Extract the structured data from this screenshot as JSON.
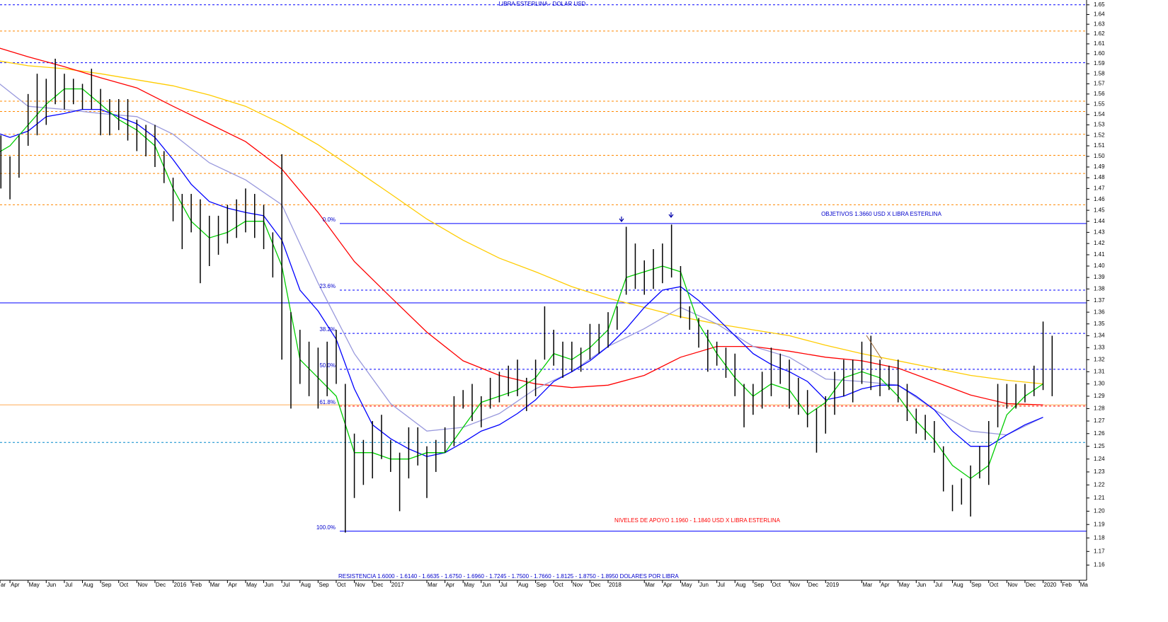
{
  "chart_data": {
    "type": "ohlc",
    "title": "LIBRA ESTERLINA - DOLAR USD",
    "annotations": [
      "OBJETIVOS 1.3660 USD X LIBRA ESTERLINA",
      "NIVELES DE APOYO 1.1960 - 1.1840 USD X LIBRA ESTERLINA",
      "RESISTENCIA 1.6000 - 1.6140 - 1.6635 - 1.6750 - 1.6960 - 1.7245 - 1.7500 - 1.7660 - 1.8125 - 1.8750 - 1.8950 DOLARES POR LIBRA"
    ],
    "color": "#000000",
    "log_y": true,
    "xlim": [
      0.45,
      60.4
    ],
    "ylim": [
      1.149,
      1.655
    ],
    "xticks": [
      {
        "value": 0.45,
        "label": "ar"
      },
      {
        "value": 1,
        "label": "Apr"
      },
      {
        "value": 2,
        "label": "May"
      },
      {
        "value": 3,
        "label": "Jun"
      },
      {
        "value": 4,
        "label": "Jul"
      },
      {
        "value": 5,
        "label": "Aug"
      },
      {
        "value": 6,
        "label": "Sep"
      },
      {
        "value": 7,
        "label": "Oct"
      },
      {
        "value": 8,
        "label": "Nov"
      },
      {
        "value": 9,
        "label": "Dec"
      },
      {
        "value": 10,
        "label": "2016"
      },
      {
        "value": 11,
        "label": "Feb"
      },
      {
        "value": 12,
        "label": "Mar"
      },
      {
        "value": 13,
        "label": "Apr"
      },
      {
        "value": 14,
        "label": "May"
      },
      {
        "value": 15,
        "label": "Jun"
      },
      {
        "value": 16,
        "label": "Jul"
      },
      {
        "value": 17,
        "label": "Aug"
      },
      {
        "value": 18,
        "label": "Sep"
      },
      {
        "value": 19,
        "label": "Oct"
      },
      {
        "value": 20,
        "label": "Nov"
      },
      {
        "value": 21,
        "label": "Dec"
      },
      {
        "value": 22,
        "label": "2017"
      },
      {
        "value": 24,
        "label": "Mar"
      },
      {
        "value": 25,
        "label": "Apr"
      },
      {
        "value": 26,
        "label": "May"
      },
      {
        "value": 27,
        "label": "Jun"
      },
      {
        "value": 28,
        "label": "Jul"
      },
      {
        "value": 29,
        "label": "Aug"
      },
      {
        "value": 30,
        "label": "Sep"
      },
      {
        "value": 31,
        "label": "Oct"
      },
      {
        "value": 32,
        "label": "Nov"
      },
      {
        "value": 33,
        "label": "Dec"
      },
      {
        "value": 34,
        "label": "2018"
      },
      {
        "value": 36,
        "label": "Mar"
      },
      {
        "value": 37,
        "label": "Apr"
      },
      {
        "value": 38,
        "label": "May"
      },
      {
        "value": 39,
        "label": "Jun"
      },
      {
        "value": 40,
        "label": "Jul"
      },
      {
        "value": 41,
        "label": "Aug"
      },
      {
        "value": 42,
        "label": "Sep"
      },
      {
        "value": 43,
        "label": "Oct"
      },
      {
        "value": 44,
        "label": "Nov"
      },
      {
        "value": 45,
        "label": "Dec"
      },
      {
        "value": 46,
        "label": "2019"
      },
      {
        "value": 48,
        "label": "Mar"
      },
      {
        "value": 49,
        "label": "Apr"
      },
      {
        "value": 50,
        "label": "May"
      },
      {
        "value": 51,
        "label": "Jun"
      },
      {
        "value": 52,
        "label": "Jul"
      },
      {
        "value": 53,
        "label": "Aug"
      },
      {
        "value": 54,
        "label": "Sep"
      },
      {
        "value": 55,
        "label": "Oct"
      },
      {
        "value": 56,
        "label": "Nov"
      },
      {
        "value": 57,
        "label": "Dec"
      },
      {
        "value": 58,
        "label": "2020"
      },
      {
        "value": 59,
        "label": "Feb"
      },
      {
        "value": 60,
        "label": "Ma"
      }
    ],
    "yticks": [
      1.16,
      1.17,
      1.18,
      1.19,
      {
        "value": 1.2,
        "label": "1.20"
      },
      1.21,
      1.22,
      1.23,
      1.24,
      1.25,
      1.26,
      1.27,
      1.28,
      1.29,
      {
        "value": 1.3,
        "label": "1.30"
      },
      1.31,
      1.32,
      1.33,
      1.34,
      1.35,
      1.36,
      1.37,
      1.38,
      1.39,
      {
        "value": 1.4,
        "label": "1.40"
      },
      1.41,
      1.42,
      1.43,
      1.44,
      1.45,
      1.46,
      1.47,
      1.48,
      1.49,
      {
        "value": 1.5,
        "label": "1.50"
      },
      1.51,
      1.52,
      1.53,
      1.54,
      1.55,
      1.56,
      1.57,
      1.58,
      1.59,
      {
        "value": 1.6,
        "label": "1.60"
      },
      1.61,
      1.62,
      1.63,
      1.64,
      1.65
    ],
    "x": [
      0.5,
      1,
      1.5,
      2,
      2.5,
      3,
      3.5,
      4,
      4.5,
      5,
      5.5,
      6,
      6.5,
      7,
      7.5,
      8,
      8.5,
      9,
      9.5,
      10,
      10.5,
      11,
      11.5,
      12,
      12.5,
      13,
      13.5,
      14,
      14.5,
      15,
      15.5,
      16,
      16.5,
      17,
      17.5,
      18,
      18.5,
      19,
      19.5,
      20,
      20.5,
      21,
      21.5,
      22,
      22.5,
      23,
      23.5,
      24,
      24.5,
      25,
      25.5,
      26,
      26.5,
      27,
      27.5,
      28,
      28.5,
      29,
      29.5,
      30,
      30.5,
      31,
      31.5,
      32,
      32.5,
      33,
      33.5,
      34,
      34.5,
      35,
      35.5,
      36,
      36.5,
      37,
      37.5,
      38,
      38.5,
      39,
      39.5,
      40,
      40.5,
      41,
      41.5,
      42,
      42.5,
      43,
      43.5,
      44,
      44.5,
      45,
      45.5,
      46,
      46.5,
      47,
      47.5,
      48,
      48.5,
      49,
      49.5,
      50,
      50.5,
      51,
      51.5,
      52,
      52.5,
      53,
      53.5,
      54,
      54.5,
      55,
      55.5,
      56,
      56.5,
      57,
      57.5,
      58,
      58.5
    ],
    "high": [
      1.52,
      1.5,
      1.52,
      1.56,
      1.58,
      1.575,
      1.595,
      1.58,
      1.575,
      1.57,
      1.585,
      1.565,
      1.555,
      1.555,
      1.555,
      1.535,
      1.53,
      1.53,
      1.505,
      1.48,
      1.465,
      1.465,
      1.46,
      1.445,
      1.445,
      1.455,
      1.46,
      1.47,
      1.465,
      1.455,
      1.43,
      1.502,
      1.36,
      1.345,
      1.335,
      1.33,
      1.335,
      1.345,
      1.3,
      1.26,
      1.255,
      1.27,
      1.275,
      1.255,
      1.245,
      1.265,
      1.265,
      1.25,
      1.255,
      1.265,
      1.29,
      1.295,
      1.3,
      1.29,
      1.305,
      1.31,
      1.315,
      1.32,
      1.305,
      1.32,
      1.365,
      1.345,
      1.335,
      1.335,
      1.33,
      1.35,
      1.35,
      1.36,
      1.365,
      1.435,
      1.42,
      1.405,
      1.415,
      1.42,
      1.437,
      1.4,
      1.365,
      1.355,
      1.345,
      1.335,
      1.33,
      1.325,
      1.3,
      1.3,
      1.31,
      1.33,
      1.325,
      1.32,
      1.305,
      1.295,
      1.28,
      1.29,
      1.31,
      1.32,
      1.32,
      1.335,
      1.34,
      1.32,
      1.315,
      1.32,
      1.3,
      1.28,
      1.275,
      1.27,
      1.25,
      1.22,
      1.225,
      1.235,
      1.25,
      1.27,
      1.3,
      1.3,
      1.3,
      1.3,
      1.315,
      1.352,
      1.34
    ],
    "low": [
      1.47,
      1.46,
      1.48,
      1.51,
      1.52,
      1.53,
      1.55,
      1.545,
      1.55,
      1.545,
      1.545,
      1.52,
      1.52,
      1.525,
      1.515,
      1.505,
      1.5,
      1.49,
      1.475,
      1.44,
      1.415,
      1.43,
      1.385,
      1.4,
      1.41,
      1.42,
      1.425,
      1.43,
      1.425,
      1.415,
      1.39,
      1.32,
      1.28,
      1.3,
      1.29,
      1.28,
      1.29,
      1.3,
      1.184,
      1.21,
      1.22,
      1.225,
      1.24,
      1.23,
      1.2,
      1.225,
      1.235,
      1.21,
      1.23,
      1.245,
      1.25,
      1.28,
      1.27,
      1.265,
      1.28,
      1.285,
      1.29,
      1.29,
      1.278,
      1.29,
      1.32,
      1.315,
      1.305,
      1.31,
      1.31,
      1.32,
      1.325,
      1.33,
      1.345,
      1.375,
      1.38,
      1.375,
      1.38,
      1.385,
      1.39,
      1.355,
      1.345,
      1.33,
      1.31,
      1.315,
      1.305,
      1.29,
      1.265,
      1.275,
      1.28,
      1.29,
      1.3,
      1.28,
      1.275,
      1.265,
      1.245,
      1.26,
      1.275,
      1.29,
      1.285,
      1.3,
      1.295,
      1.29,
      1.295,
      1.285,
      1.27,
      1.26,
      1.255,
      1.245,
      1.215,
      1.2,
      1.205,
      1.196,
      1.225,
      1.22,
      1.265,
      1.28,
      1.28,
      1.285,
      1.29,
      1.295,
      1.29
    ],
    "lines": [
      {
        "color": "#ffcc00",
        "x": [
          0,
          2,
          4,
          6,
          8,
          10,
          12,
          14,
          16,
          18,
          20,
          22,
          24,
          26,
          28,
          30,
          32,
          34,
          36,
          38,
          40,
          42,
          44,
          46,
          48,
          50,
          52,
          54,
          56,
          58
        ],
        "values": [
          1.594,
          1.588,
          1.585,
          1.58,
          1.574,
          1.568,
          1.559,
          1.548,
          1.531,
          1.511,
          1.488,
          1.465,
          1.442,
          1.423,
          1.407,
          1.395,
          1.382,
          1.372,
          1.364,
          1.356,
          1.35,
          1.345,
          1.34,
          1.332,
          1.325,
          1.319,
          1.313,
          1.307,
          1.303,
          1.3
        ]
      },
      {
        "color": "#ff0000",
        "x": [
          0,
          2,
          4,
          6,
          8,
          10,
          12,
          14,
          16,
          18,
          20,
          22,
          24,
          26,
          28,
          30,
          32,
          34,
          36,
          38,
          40,
          42,
          44,
          46,
          48,
          50,
          52,
          54,
          56,
          58
        ],
        "values": [
          1.608,
          1.597,
          1.587,
          1.576,
          1.566,
          1.548,
          1.531,
          1.514,
          1.488,
          1.448,
          1.404,
          1.373,
          1.343,
          1.319,
          1.307,
          1.3,
          1.297,
          1.299,
          1.307,
          1.322,
          1.331,
          1.331,
          1.327,
          1.322,
          1.319,
          1.313,
          1.302,
          1.291,
          1.284,
          1.283
        ]
      },
      {
        "color": "#9999dd",
        "x": [
          0,
          2,
          4,
          6,
          8,
          10,
          12,
          14,
          16,
          18,
          20,
          22,
          24,
          26,
          28,
          30,
          32,
          34,
          36,
          38,
          40,
          42,
          44,
          46,
          48,
          50,
          52,
          54,
          56,
          58
        ],
        "values": [
          1.576,
          1.548,
          1.545,
          1.541,
          1.538,
          1.521,
          1.494,
          1.478,
          1.455,
          1.385,
          1.325,
          1.284,
          1.262,
          1.265,
          1.276,
          1.296,
          1.31,
          1.331,
          1.346,
          1.364,
          1.35,
          1.331,
          1.322,
          1.304,
          1.302,
          1.299,
          1.279,
          1.262,
          1.259,
          1.273
        ]
      },
      {
        "color": "#0000ff",
        "x": [
          0,
          1,
          2,
          3,
          4,
          5,
          6,
          7,
          8,
          9,
          10,
          11,
          12,
          13,
          14,
          15,
          16,
          17,
          18,
          19,
          20,
          21,
          22,
          23,
          24,
          25,
          26,
          27,
          28,
          29,
          30,
          31,
          32,
          33,
          34,
          35,
          36,
          37,
          38,
          39,
          40,
          41,
          42,
          43,
          44,
          45,
          46,
          47,
          48,
          49,
          50,
          51,
          52,
          53,
          54,
          55,
          56,
          57,
          58
        ],
        "values": [
          1.524,
          1.518,
          1.524,
          1.538,
          1.541,
          1.545,
          1.545,
          1.538,
          1.531,
          1.518,
          1.497,
          1.474,
          1.458,
          1.452,
          1.448,
          1.445,
          1.423,
          1.379,
          1.361,
          1.337,
          1.296,
          1.267,
          1.256,
          1.248,
          1.242,
          1.245,
          1.253,
          1.262,
          1.267,
          1.276,
          1.287,
          1.302,
          1.31,
          1.319,
          1.331,
          1.346,
          1.364,
          1.379,
          1.382,
          1.37,
          1.355,
          1.34,
          1.325,
          1.316,
          1.31,
          1.302,
          1.287,
          1.29,
          1.296,
          1.299,
          1.299,
          1.29,
          1.279,
          1.262,
          1.25,
          1.25,
          1.259,
          1.267,
          1.273
        ]
      },
      {
        "color": "#00cc00",
        "x": [
          0,
          1,
          2,
          3,
          4,
          5,
          6,
          7,
          8,
          9,
          10,
          11,
          12,
          13,
          14,
          15,
          16,
          17,
          18,
          19,
          20,
          21,
          22,
          23,
          24,
          25,
          26,
          27,
          28,
          29,
          30,
          31,
          32,
          33,
          34,
          35,
          36,
          37,
          38,
          39,
          40,
          41,
          42,
          43,
          44,
          45,
          46,
          47,
          48,
          49,
          50,
          51,
          52,
          53,
          54,
          55,
          56,
          57,
          58
        ],
        "values": [
          1.5,
          1.51,
          1.53,
          1.55,
          1.565,
          1.565,
          1.55,
          1.535,
          1.525,
          1.51,
          1.47,
          1.44,
          1.425,
          1.43,
          1.44,
          1.44,
          1.4,
          1.32,
          1.305,
          1.29,
          1.245,
          1.245,
          1.24,
          1.24,
          1.245,
          1.245,
          1.265,
          1.285,
          1.29,
          1.295,
          1.305,
          1.325,
          1.32,
          1.33,
          1.345,
          1.39,
          1.395,
          1.4,
          1.395,
          1.35,
          1.325,
          1.305,
          1.29,
          1.3,
          1.295,
          1.275,
          1.285,
          1.305,
          1.31,
          1.305,
          1.29,
          1.27,
          1.255,
          1.235,
          1.225,
          1.235,
          1.275,
          1.29,
          1.3
        ]
      }
    ],
    "levels": [
      {
        "value": 1.65,
        "color": "#0000ff",
        "dash": true
      },
      {
        "value": 1.623,
        "color": "#ff8800",
        "dash": true
      },
      {
        "value": 1.591,
        "color": "#0000ff",
        "dash": true
      },
      {
        "value": 1.553,
        "color": "#ff8800",
        "dash": true
      },
      {
        "value": 1.543,
        "color": "#ff8800",
        "dash": true
      },
      {
        "value": 1.521,
        "color": "#ff8800",
        "dash": true
      },
      {
        "value": 1.501,
        "color": "#ff8800",
        "dash": true
      },
      {
        "value": 1.484,
        "color": "#ff8800",
        "dash": true
      },
      {
        "value": 1.455,
        "color": "#ff8800",
        "dash": true
      },
      {
        "value": 1.368,
        "color": "#0000ff",
        "dash": false
      },
      {
        "value": 1.283,
        "color": "#ffaa55",
        "dash": false
      },
      {
        "value": 1.253,
        "color": "#0088cc",
        "dash": true
      }
    ],
    "fibonacci": [
      {
        "value": 1.438,
        "label": "0.0%",
        "color": "#0000ff",
        "dash": false
      },
      {
        "value": 1.379,
        "label": "23.6%",
        "color": "#0000ff",
        "dash": true
      },
      {
        "value": 1.342,
        "label": "38.2%",
        "color": "#0000ff",
        "dash": true
      },
      {
        "value": 1.312,
        "label": "50.0%",
        "color": "#0000ff",
        "dash": true
      },
      {
        "value": 1.282,
        "label": "61.8%",
        "color": "#ff0000",
        "dash": true
      },
      {
        "value": 1.185,
        "label": "100.0%",
        "color": "#0000ff",
        "dash": false
      }
    ]
  }
}
